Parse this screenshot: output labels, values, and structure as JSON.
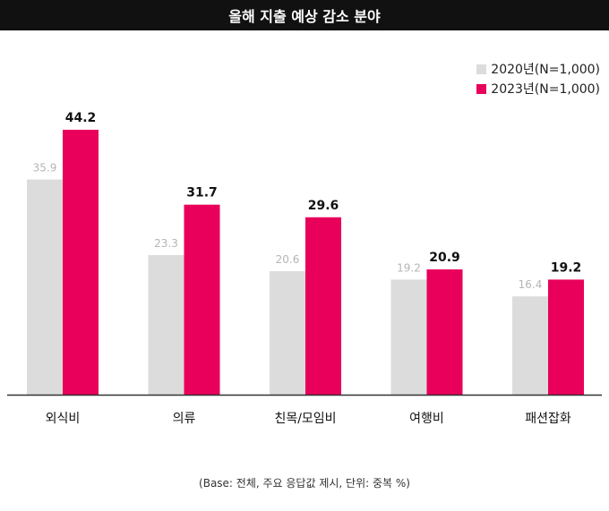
{
  "chart_data": {
    "type": "bar",
    "title": "올해 지출 예상 감소 분야",
    "categories": [
      "외식비",
      "의류",
      "친목/모임비",
      "여행비",
      "패션잡화"
    ],
    "series": [
      {
        "name": "2020년(N=1,000)",
        "color": "#dcdcdc",
        "label_color": "#b5b5b5",
        "values": [
          35.9,
          23.3,
          20.6,
          19.2,
          16.4
        ],
        "labels": [
          "35.9",
          "23.3",
          "20.6",
          "19.2",
          "16.4"
        ]
      },
      {
        "name": "2023년(N=1,000)",
        "color": "#e8005a",
        "label_color": "#111111",
        "values": [
          44.2,
          31.7,
          29.6,
          20.9,
          19.2
        ],
        "labels": [
          "44.2",
          "31.7",
          "29.6",
          "20.9",
          "19.2"
        ]
      }
    ],
    "ylim": [
      0,
      44.2
    ],
    "grid": false,
    "legend": "top-right",
    "footnote": "(Base: 전체, 주요 응답값 제시, 단위: 중복 %)"
  }
}
